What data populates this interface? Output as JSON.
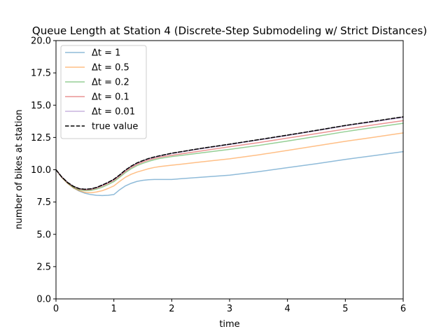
{
  "chart_data": {
    "type": "line",
    "title": "Queue Length at Station 4 (Discrete-Step Submodeling w/ Strict Distances)",
    "xlabel": "time",
    "ylabel": "number of bikes at station",
    "xlim": [
      0,
      6
    ],
    "ylim": [
      0,
      20
    ],
    "xticks": [
      0,
      1,
      2,
      3,
      4,
      5,
      6
    ],
    "xtick_labels": [
      "0",
      "1",
      "2",
      "3",
      "4",
      "5",
      "6"
    ],
    "yticks": [
      0,
      2.5,
      5,
      7.5,
      10,
      12.5,
      15,
      17.5,
      20
    ],
    "ytick_labels": [
      "0.0",
      "2.5",
      "5.0",
      "7.5",
      "10.0",
      "12.5",
      "15.0",
      "17.5",
      "20.0"
    ],
    "grid": false,
    "legend_position": "upper-left",
    "series": [
      {
        "name": "Δt = 1",
        "color": "#1f77b4",
        "dash": "solid",
        "opacity": 0.5,
        "x": [
          0,
          0.1,
          0.2,
          0.3,
          0.4,
          0.5,
          0.6,
          0.7,
          0.8,
          0.9,
          1.0,
          1.1,
          1.2,
          1.3,
          1.4,
          1.5,
          1.6,
          1.7,
          1.8,
          2.0,
          2.5,
          3.0,
          3.5,
          4.0,
          4.5,
          5.0,
          5.5,
          6.0
        ],
        "y": [
          10.0,
          9.4,
          8.95,
          8.6,
          8.35,
          8.18,
          8.08,
          8.02,
          8.0,
          8.02,
          8.08,
          8.45,
          8.75,
          8.95,
          9.1,
          9.18,
          9.23,
          9.25,
          9.25,
          9.25,
          9.42,
          9.58,
          9.85,
          10.16,
          10.47,
          10.8,
          11.1,
          11.4
        ]
      },
      {
        "name": "Δt = 0.5",
        "color": "#ff7f0e",
        "dash": "solid",
        "opacity": 0.5,
        "x": [
          0,
          0.1,
          0.2,
          0.3,
          0.4,
          0.5,
          0.6,
          0.7,
          0.8,
          0.9,
          1.0,
          1.1,
          1.2,
          1.3,
          1.4,
          1.5,
          1.6,
          1.7,
          1.8,
          2.0,
          2.5,
          3.0,
          3.5,
          4.0,
          4.5,
          5.0,
          5.5,
          6.0
        ],
        "y": [
          10.0,
          9.4,
          8.95,
          8.6,
          8.38,
          8.25,
          8.22,
          8.28,
          8.38,
          8.55,
          8.75,
          9.1,
          9.42,
          9.65,
          9.82,
          9.95,
          10.08,
          10.18,
          10.25,
          10.35,
          10.6,
          10.85,
          11.15,
          11.5,
          11.85,
          12.2,
          12.52,
          12.85
        ]
      },
      {
        "name": "Δt = 0.2",
        "color": "#2ca02c",
        "dash": "solid",
        "opacity": 0.5,
        "x": [
          0,
          0.1,
          0.2,
          0.3,
          0.4,
          0.5,
          0.6,
          0.7,
          0.8,
          0.9,
          1.0,
          1.1,
          1.2,
          1.3,
          1.4,
          1.5,
          1.6,
          1.7,
          1.8,
          2.0,
          2.5,
          3.0,
          3.5,
          4.0,
          4.5,
          5.0,
          5.5,
          6.0
        ],
        "y": [
          10.0,
          9.42,
          8.98,
          8.65,
          8.45,
          8.38,
          8.4,
          8.5,
          8.65,
          8.85,
          9.08,
          9.42,
          9.78,
          10.08,
          10.32,
          10.5,
          10.65,
          10.78,
          10.88,
          11.02,
          11.3,
          11.58,
          11.88,
          12.22,
          12.58,
          12.95,
          13.28,
          13.6
        ]
      },
      {
        "name": "Δt = 0.1",
        "color": "#d62728",
        "dash": "solid",
        "opacity": 0.5,
        "x": [
          0,
          0.1,
          0.2,
          0.3,
          0.4,
          0.5,
          0.6,
          0.7,
          0.8,
          0.9,
          1.0,
          1.1,
          1.2,
          1.3,
          1.4,
          1.5,
          1.6,
          1.7,
          1.8,
          2.0,
          2.5,
          3.0,
          3.5,
          4.0,
          4.5,
          5.0,
          5.5,
          6.0
        ],
        "y": [
          10.0,
          9.43,
          9.0,
          8.7,
          8.5,
          8.44,
          8.47,
          8.58,
          8.75,
          8.95,
          9.18,
          9.52,
          9.88,
          10.18,
          10.42,
          10.6,
          10.76,
          10.88,
          10.98,
          11.12,
          11.45,
          11.78,
          12.1,
          12.45,
          12.8,
          13.15,
          13.48,
          13.8
        ]
      },
      {
        "name": "Δt = 0.01",
        "color": "#9467bd",
        "dash": "solid",
        "opacity": 0.5,
        "x": [
          0,
          0.1,
          0.2,
          0.3,
          0.4,
          0.5,
          0.6,
          0.7,
          0.8,
          0.9,
          1.0,
          1.1,
          1.2,
          1.3,
          1.4,
          1.5,
          1.6,
          1.7,
          1.8,
          2.0,
          2.5,
          3.0,
          3.5,
          4.0,
          4.5,
          5.0,
          5.5,
          6.0
        ],
        "y": [
          10.0,
          9.44,
          9.02,
          8.72,
          8.53,
          8.48,
          8.51,
          8.62,
          8.8,
          9.0,
          9.24,
          9.58,
          9.95,
          10.25,
          10.5,
          10.68,
          10.84,
          10.96,
          11.06,
          11.25,
          11.62,
          11.95,
          12.3,
          12.65,
          13.02,
          13.4,
          13.72,
          14.05
        ]
      },
      {
        "name": "true value",
        "color": "#000000",
        "dash": "dashed",
        "opacity": 1,
        "x": [
          0,
          0.1,
          0.2,
          0.3,
          0.4,
          0.5,
          0.6,
          0.7,
          0.8,
          0.9,
          1.0,
          1.1,
          1.2,
          1.3,
          1.4,
          1.5,
          1.6,
          1.7,
          1.8,
          2.0,
          2.5,
          3.0,
          3.5,
          4.0,
          4.5,
          5.0,
          5.5,
          6.0
        ],
        "y": [
          10.0,
          9.44,
          9.02,
          8.72,
          8.54,
          8.49,
          8.52,
          8.63,
          8.82,
          9.02,
          9.26,
          9.6,
          9.98,
          10.28,
          10.53,
          10.71,
          10.87,
          10.99,
          11.09,
          11.28,
          11.65,
          11.98,
          12.33,
          12.68,
          13.05,
          13.43,
          13.76,
          14.1
        ]
      }
    ]
  }
}
